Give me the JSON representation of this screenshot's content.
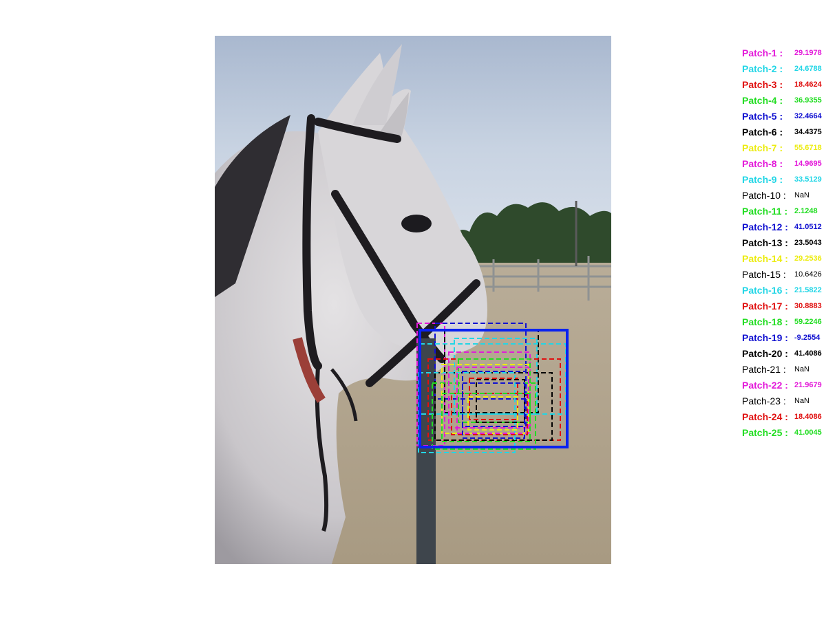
{
  "colors": {
    "magenta": "#e31ad9",
    "cyan": "#22d6e6",
    "red": "#e01010",
    "green": "#22dd22",
    "blue": "#1010d0",
    "black": "#000000",
    "yellow": "#ecec10",
    "bbox_main": "#0a22f0"
  },
  "image": {
    "scene": "white horse wearing bridle in sandy paddock with overlaid detection boxes"
  },
  "legend": [
    {
      "label": "Patch-1 :",
      "value": "29.1978",
      "color": "#e31ad9",
      "bold": true
    },
    {
      "label": "Patch-2 :",
      "value": "24.6788",
      "color": "#22d6e6",
      "bold": true
    },
    {
      "label": "Patch-3 :",
      "value": "18.4624",
      "color": "#e01010",
      "bold": true
    },
    {
      "label": "Patch-4 :",
      "value": "36.9355",
      "color": "#22dd22",
      "bold": true
    },
    {
      "label": "Patch-5 :",
      "value": "32.4664",
      "color": "#1010d0",
      "bold": true
    },
    {
      "label": "Patch-6 :",
      "value": "34.4375",
      "color": "#000000",
      "bold": true
    },
    {
      "label": "Patch-7 :",
      "value": "55.6718",
      "color": "#ecec10",
      "bold": true
    },
    {
      "label": "Patch-8 :",
      "value": "14.9695",
      "color": "#e31ad9",
      "bold": true
    },
    {
      "label": "Patch-9 :",
      "value": "33.5129",
      "color": "#22d6e6",
      "bold": true
    },
    {
      "label": "Patch-10 :",
      "value": "NaN",
      "color": "#000000",
      "bold": false
    },
    {
      "label": "Patch-11 :",
      "value": "2.1248",
      "color": "#22dd22",
      "bold": true
    },
    {
      "label": "Patch-12 :",
      "value": "41.0512",
      "color": "#1010d0",
      "bold": true
    },
    {
      "label": "Patch-13 :",
      "value": "23.5043",
      "color": "#000000",
      "bold": true
    },
    {
      "label": "Patch-14 :",
      "value": "29.2536",
      "color": "#ecec10",
      "bold": true
    },
    {
      "label": "Patch-15 :",
      "value": "10.6426",
      "color": "#000000",
      "bold": false
    },
    {
      "label": "Patch-16 :",
      "value": "21.5822",
      "color": "#22d6e6",
      "bold": true
    },
    {
      "label": "Patch-17 :",
      "value": "30.8883",
      "color": "#e01010",
      "bold": true
    },
    {
      "label": "Patch-18 :",
      "value": "59.2246",
      "color": "#22dd22",
      "bold": true
    },
    {
      "label": "Patch-19 :",
      "value": "-9.2554",
      "color": "#1010d0",
      "bold": true
    },
    {
      "label": "Patch-20 :",
      "value": "41.4086",
      "color": "#000000",
      "bold": true
    },
    {
      "label": "Patch-21 :",
      "value": "NaN",
      "color": "#000000",
      "bold": false
    },
    {
      "label": "Patch-22 :",
      "value": "21.9679",
      "color": "#e31ad9",
      "bold": true
    },
    {
      "label": "Patch-23 :",
      "value": "NaN",
      "color": "#000000",
      "bold": false
    },
    {
      "label": "Patch-24 :",
      "value": "18.4086",
      "color": "#e01010",
      "bold": true
    },
    {
      "label": "Patch-25 :",
      "value": "41.0045",
      "color": "#22dd22",
      "bold": true
    }
  ]
}
